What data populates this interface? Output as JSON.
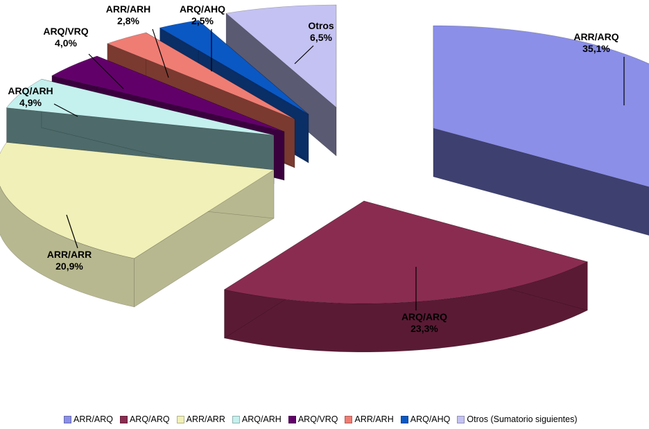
{
  "chart_data": {
    "type": "pie",
    "legend_position": "bottom",
    "slices": [
      {
        "label": "ARR/ARQ",
        "value": 35.1,
        "value_label": "35,1%",
        "color": "#8b8fe8",
        "side_color": "#3e4070",
        "legend": "ARR/ARQ"
      },
      {
        "label": "ARQ/ARQ",
        "value": 23.3,
        "value_label": "23,3%",
        "color": "#8a2c50",
        "side_color": "#5a1a34",
        "legend": "ARQ/ARQ"
      },
      {
        "label": "ARR/ARR",
        "value": 20.9,
        "value_label": "20,9%",
        "color": "#f0f0b8",
        "side_color": "#b8b890",
        "legend": "ARR/ARR"
      },
      {
        "label": "ARQ/ARH",
        "value": 4.9,
        "value_label": "4,9%",
        "color": "#c4f0ee",
        "side_color": "#4e6a6a",
        "legend": "ARQ/ARH"
      },
      {
        "label": "ARQ/VRQ",
        "value": 4.0,
        "value_label": "4,0%",
        "color": "#62006a",
        "side_color": "#3a003e",
        "legend": "ARQ/VRQ"
      },
      {
        "label": "ARR/ARH",
        "value": 2.8,
        "value_label": "2,8%",
        "color": "#ef7d74",
        "side_color": "#7a3a30",
        "legend": "ARR/ARH"
      },
      {
        "label": "ARQ/AHQ",
        "value": 2.5,
        "value_label": "2,5%",
        "color": "#0a58c4",
        "side_color": "#0a2e66",
        "legend": "ARQ/AHQ"
      },
      {
        "label": "Otros",
        "value": 6.5,
        "value_label": "6,5%",
        "color": "#c4c2f2",
        "side_color": "#5a5a72",
        "legend": "Otros (Sumatorio siguientes)"
      }
    ]
  }
}
